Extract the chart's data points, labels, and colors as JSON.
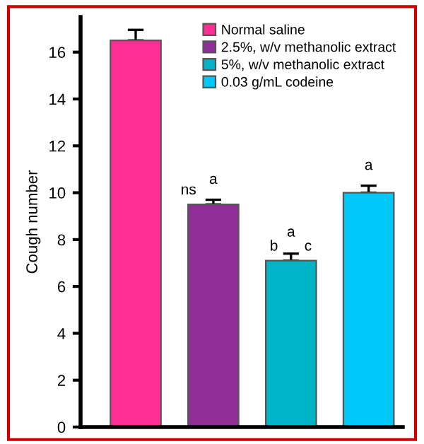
{
  "chart_data": {
    "type": "bar",
    "ylabel": "Cough number",
    "categories": [
      null,
      null,
      null,
      null
    ],
    "series": [
      {
        "name": "Normal saline",
        "color": "#ff2d96",
        "values": [
          16.5,
          null,
          null,
          null
        ],
        "errors": [
          [
            16.5,
            16.95
          ],
          null,
          null,
          null
        ]
      },
      {
        "name": "2.5%, w/v methanolic extract",
        "color": "#8e2e96",
        "values": [
          null,
          9.5,
          null,
          null
        ],
        "errors": [
          null,
          [
            9.5,
            9.7
          ],
          null,
          null
        ]
      },
      {
        "name": "5%, w/v methanolic extract",
        "color": "#00b4c8",
        "values": [
          null,
          null,
          7.1,
          null
        ],
        "errors": [
          null,
          null,
          [
            7.1,
            7.4
          ],
          null
        ]
      },
      {
        "name": "0.03 g/mL codeine",
        "color": "#00c8f8",
        "values": [
          null,
          null,
          null,
          10.0
        ],
        "errors": [
          null,
          null,
          null,
          [
            10.0,
            10.3
          ]
        ]
      }
    ],
    "annotations": [
      {
        "text": "ns",
        "y": 9.7
      },
      {
        "text": "a",
        "y": 9.7
      },
      {
        "text": "b",
        "y": 7.4
      },
      {
        "text": "a",
        "y": 7.4
      },
      {
        "text": "c",
        "y": 7.4
      },
      {
        "text": "a",
        "y": 10.3
      }
    ],
    "ylim": [
      0,
      17.5
    ],
    "yticks": [
      0,
      2,
      4,
      6,
      8,
      10,
      12,
      14,
      16
    ],
    "legend": "top right",
    "grid": false
  }
}
